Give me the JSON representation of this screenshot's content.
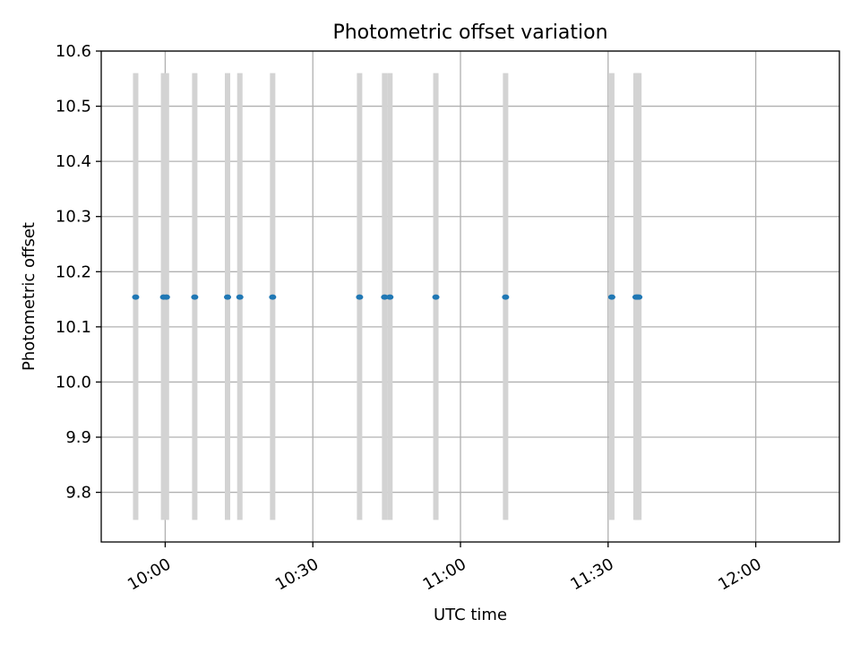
{
  "chart_data": {
    "type": "scatter",
    "title": "Photometric offset variation",
    "xlabel": "UTC time",
    "ylabel": "Photometric offset",
    "x_type": "time",
    "xlim": [
      "09:47",
      "12:17"
    ],
    "ylim": [
      9.71,
      10.6
    ],
    "x_ticks": [
      "10:00",
      "10:30",
      "11:00",
      "11:30",
      "12:00"
    ],
    "y_ticks": [
      "9.8",
      "9.9",
      "10.0",
      "10.1",
      "10.2",
      "10.3",
      "10.4",
      "10.5",
      "10.6"
    ],
    "grid": true,
    "colors": {
      "points": "#1f77b4",
      "error_bars": "#d3d3d3",
      "grid": "#b0b0b0"
    },
    "series": [
      {
        "x": [
          "09:54:00",
          "09:59:40",
          "10:00:15",
          "10:06:00",
          "10:12:40",
          "10:15:10",
          "10:21:50",
          "10:39:30",
          "10:44:35",
          "10:45:40",
          "10:55:00",
          "11:09:10",
          "11:30:45",
          "11:35:40",
          "11:35:55",
          "11:36:15"
        ],
        "y": [
          10.154,
          10.154,
          10.154,
          10.154,
          10.154,
          10.154,
          10.154,
          10.154,
          10.154,
          10.154,
          10.154,
          10.154,
          10.154,
          10.154,
          10.154,
          10.154
        ],
        "y_err_low": [
          9.75,
          9.75,
          9.75,
          9.75,
          9.75,
          9.75,
          9.75,
          9.75,
          9.75,
          9.75,
          9.75,
          9.75,
          9.75,
          9.75,
          9.75,
          9.75
        ],
        "y_err_high": [
          10.56,
          10.56,
          10.56,
          10.56,
          10.56,
          10.56,
          10.56,
          10.56,
          10.56,
          10.56,
          10.56,
          10.56,
          10.56,
          10.56,
          10.56,
          10.56
        ]
      }
    ]
  }
}
